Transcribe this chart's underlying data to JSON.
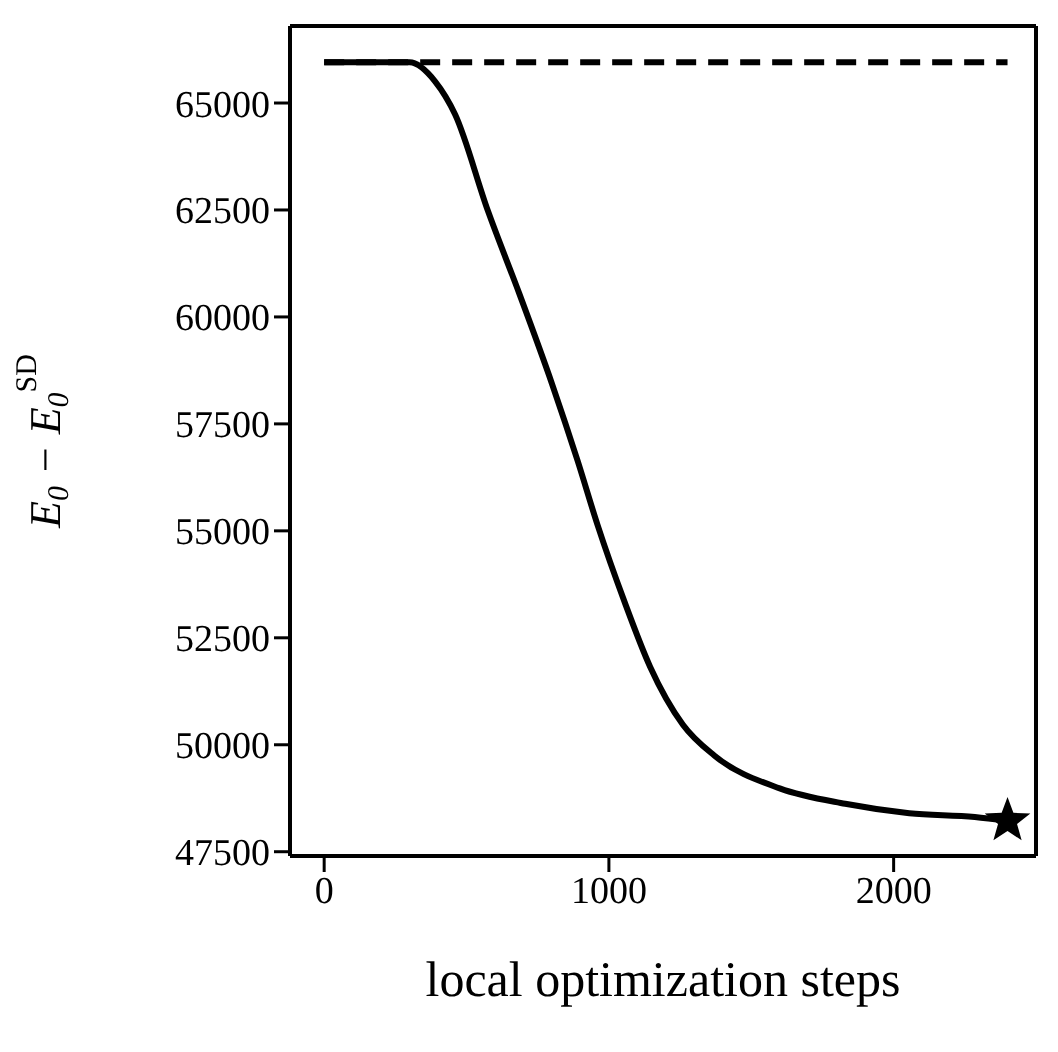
{
  "chart_data": {
    "type": "line",
    "xlabel": "local optimization steps",
    "ylabel": "E$_{0}$ − E$_{0}$$^{SD}$",
    "xlim": [
      -120,
      2500
    ],
    "xticks": [
      0,
      1000,
      2000
    ],
    "ylim": [
      47400,
      66800
    ],
    "yticks": [
      47500,
      50000,
      52500,
      55000,
      57500,
      60000,
      62500,
      65000
    ],
    "series": [
      {
        "color": "#000000",
        "marker": "none",
        "line_style": "solid",
        "x": [
          0,
          300,
          390,
          460,
          575,
          685,
          800,
          890,
          960,
          1055,
          1145,
          1260,
          1370,
          1600,
          1830,
          2055,
          2285,
          2400
        ],
        "values": [
          65950,
          65950,
          65500,
          64730,
          62480,
          60550,
          58440,
          56640,
          55140,
          53340,
          51820,
          50470,
          49750,
          48980,
          48620,
          48400,
          48310,
          48220
        ]
      },
      {
        "type": "line",
        "color": "#000000",
        "marker": "none",
        "line_style": "dashed",
        "x": [
          0,
          2400
        ],
        "values": [
          65950,
          65950
        ]
      },
      {
        "type": "scatter",
        "color": "#000000",
        "marker": "star",
        "x": [
          2400
        ],
        "values": [
          48220
        ]
      }
    ]
  }
}
